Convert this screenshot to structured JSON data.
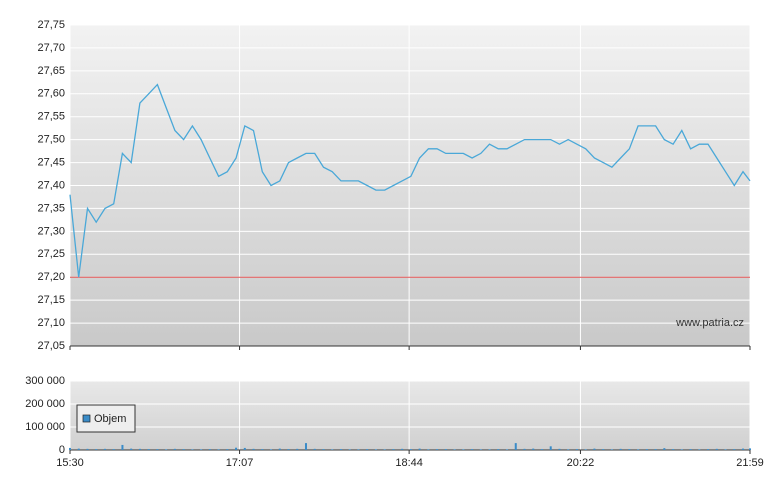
{
  "watermark": "www.patria.cz",
  "chart_data": [
    {
      "type": "line",
      "x": [
        "15:30",
        "15:35",
        "15:40",
        "15:45",
        "15:50",
        "15:55",
        "16:00",
        "16:05",
        "16:10",
        "16:15",
        "16:20",
        "16:25",
        "16:30",
        "16:35",
        "16:40",
        "16:45",
        "16:50",
        "16:55",
        "17:00",
        "17:05",
        "17:10",
        "17:15",
        "17:20",
        "17:25",
        "17:30",
        "17:35",
        "17:40",
        "17:45",
        "17:50",
        "17:55",
        "18:00",
        "18:05",
        "18:10",
        "18:15",
        "18:20",
        "18:25",
        "18:30",
        "18:35",
        "18:40",
        "18:45",
        "18:50",
        "18:55",
        "19:00",
        "19:05",
        "19:10",
        "19:15",
        "19:20",
        "19:25",
        "19:30",
        "19:35",
        "19:40",
        "19:45",
        "19:50",
        "19:55",
        "20:00",
        "20:05",
        "20:10",
        "20:15",
        "20:20",
        "20:25",
        "20:30",
        "20:35",
        "20:40",
        "20:45",
        "20:50",
        "20:55",
        "21:00",
        "21:05",
        "21:10",
        "21:15",
        "21:20",
        "21:25",
        "21:30",
        "21:35",
        "21:40",
        "21:45",
        "21:50",
        "21:55",
        "21:59"
      ],
      "series": [
        {
          "color": "#4aa8d8",
          "values": [
            27.38,
            27.2,
            27.35,
            27.32,
            27.35,
            27.36,
            27.47,
            27.45,
            27.58,
            27.6,
            27.62,
            27.57,
            27.52,
            27.5,
            27.53,
            27.5,
            27.46,
            27.42,
            27.43,
            27.46,
            27.53,
            27.52,
            27.43,
            27.4,
            27.41,
            27.45,
            27.46,
            27.47,
            27.47,
            27.44,
            27.43,
            27.41,
            27.41,
            27.41,
            27.4,
            27.39,
            27.39,
            27.4,
            27.41,
            27.42,
            27.46,
            27.48,
            27.48,
            27.47,
            27.47,
            27.47,
            27.46,
            27.47,
            27.49,
            27.48,
            27.48,
            27.49,
            27.5,
            27.5,
            27.5,
            27.5,
            27.49,
            27.5,
            27.49,
            27.48,
            27.46,
            27.45,
            27.44,
            27.46,
            27.48,
            27.53,
            27.53,
            27.53,
            27.5,
            27.49,
            27.52,
            27.48,
            27.49,
            27.49,
            27.46,
            27.43,
            27.4,
            27.43,
            27.41
          ]
        }
      ],
      "xlim": [
        "15:30",
        "21:59"
      ],
      "xticks": [
        "15:30",
        "17:07",
        "18:44",
        "20:22",
        "21:59"
      ],
      "ylim": [
        27.05,
        27.75
      ],
      "yticks": [
        {
          "value": 27.05,
          "label": "27,05"
        },
        {
          "value": 27.1,
          "label": "27,10"
        },
        {
          "value": 27.15,
          "label": "27,15"
        },
        {
          "value": 27.2,
          "label": "27,20"
        },
        {
          "value": 27.25,
          "label": "27,25"
        },
        {
          "value": 27.3,
          "label": "27,30"
        },
        {
          "value": 27.35,
          "label": "27,35"
        },
        {
          "value": 27.4,
          "label": "27,40"
        },
        {
          "value": 27.45,
          "label": "27,45"
        },
        {
          "value": 27.5,
          "label": "27,50"
        },
        {
          "value": 27.55,
          "label": "27,55"
        },
        {
          "value": 27.6,
          "label": "27,60"
        },
        {
          "value": 27.65,
          "label": "27,65"
        },
        {
          "value": 27.7,
          "label": "27,70"
        },
        {
          "value": 27.75,
          "label": "27,75"
        }
      ],
      "reference_value": 27.2,
      "reference_color": "#e05050",
      "grid": true
    },
    {
      "type": "bar",
      "x": [
        "15:30",
        "15:35",
        "15:40",
        "15:45",
        "15:50",
        "15:55",
        "16:00",
        "16:05",
        "16:10",
        "16:15",
        "16:20",
        "16:25",
        "16:30",
        "16:35",
        "16:40",
        "16:45",
        "16:50",
        "16:55",
        "17:00",
        "17:05",
        "17:10",
        "17:15",
        "17:20",
        "17:25",
        "17:30",
        "17:35",
        "17:40",
        "17:45",
        "17:50",
        "17:55",
        "18:00",
        "18:05",
        "18:10",
        "18:15",
        "18:20",
        "18:25",
        "18:30",
        "18:35",
        "18:40",
        "18:45",
        "18:50",
        "18:55",
        "19:00",
        "19:05",
        "19:10",
        "19:15",
        "19:20",
        "19:25",
        "19:30",
        "19:35",
        "19:40",
        "19:45",
        "19:50",
        "19:55",
        "20:00",
        "20:05",
        "20:10",
        "20:15",
        "20:20",
        "20:25",
        "20:30",
        "20:35",
        "20:40",
        "20:45",
        "20:50",
        "20:55",
        "21:00",
        "21:05",
        "21:10",
        "21:15",
        "21:20",
        "21:25",
        "21:30",
        "21:35",
        "21:40",
        "21:45",
        "21:50",
        "21:55",
        "21:59"
      ],
      "series": [
        {
          "name": "Objem",
          "color": "#3a8cc8",
          "values": [
            9000,
            6000,
            5000,
            4000,
            5000,
            4000,
            22000,
            6000,
            5000,
            4000,
            4000,
            3000,
            5000,
            4000,
            3000,
            3000,
            4000,
            3000,
            4000,
            10000,
            9000,
            5000,
            4000,
            3000,
            6000,
            4000,
            5000,
            30000,
            5000,
            4000,
            3000,
            4000,
            3000,
            3000,
            4000,
            3000,
            3000,
            4000,
            5000,
            4000,
            6000,
            3000,
            4000,
            4000,
            3000,
            3000,
            4000,
            3000,
            3000,
            4000,
            3000,
            30000,
            5000,
            6000,
            4000,
            16000,
            5000,
            3000,
            4000,
            3000,
            6000,
            4000,
            3000,
            5000,
            4000,
            3000,
            4000,
            4000,
            8000,
            4000,
            3000,
            4000,
            3000,
            4000,
            5000,
            3000,
            4000,
            6000,
            7000
          ]
        }
      ],
      "xlim": [
        "15:30",
        "21:59"
      ],
      "xticks": [
        "15:30",
        "17:07",
        "18:44",
        "20:22",
        "21:59"
      ],
      "ylim": [
        0,
        300000
      ],
      "yticks": [
        0,
        {
          "value": 100000,
          "label": "100 000"
        },
        {
          "value": 200000,
          "label": "200 000"
        },
        {
          "value": 300000,
          "label": "300 000"
        }
      ],
      "grid": true,
      "legend": "upper left"
    }
  ]
}
